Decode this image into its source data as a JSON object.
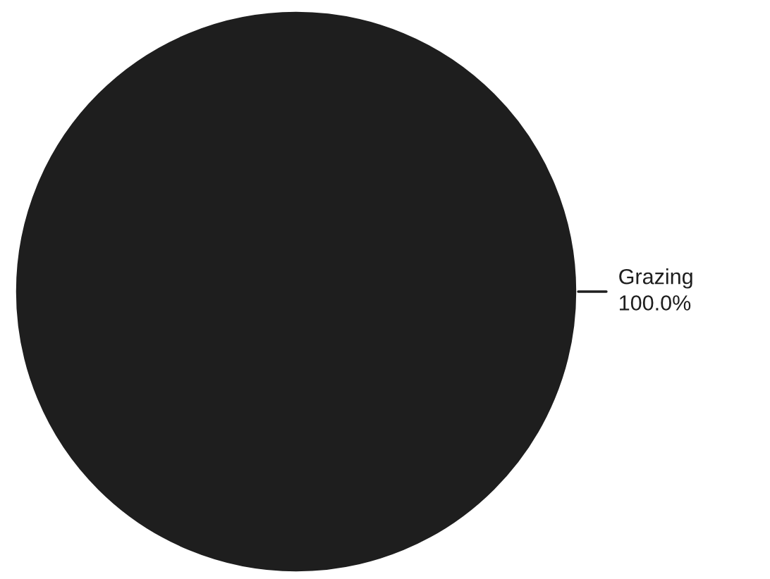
{
  "chart_data": {
    "type": "pie",
    "categories": [
      "Grazing"
    ],
    "values": [
      100
    ],
    "value_labels": [
      "100.0%"
    ],
    "colors": [
      "#1e1e1e"
    ]
  }
}
